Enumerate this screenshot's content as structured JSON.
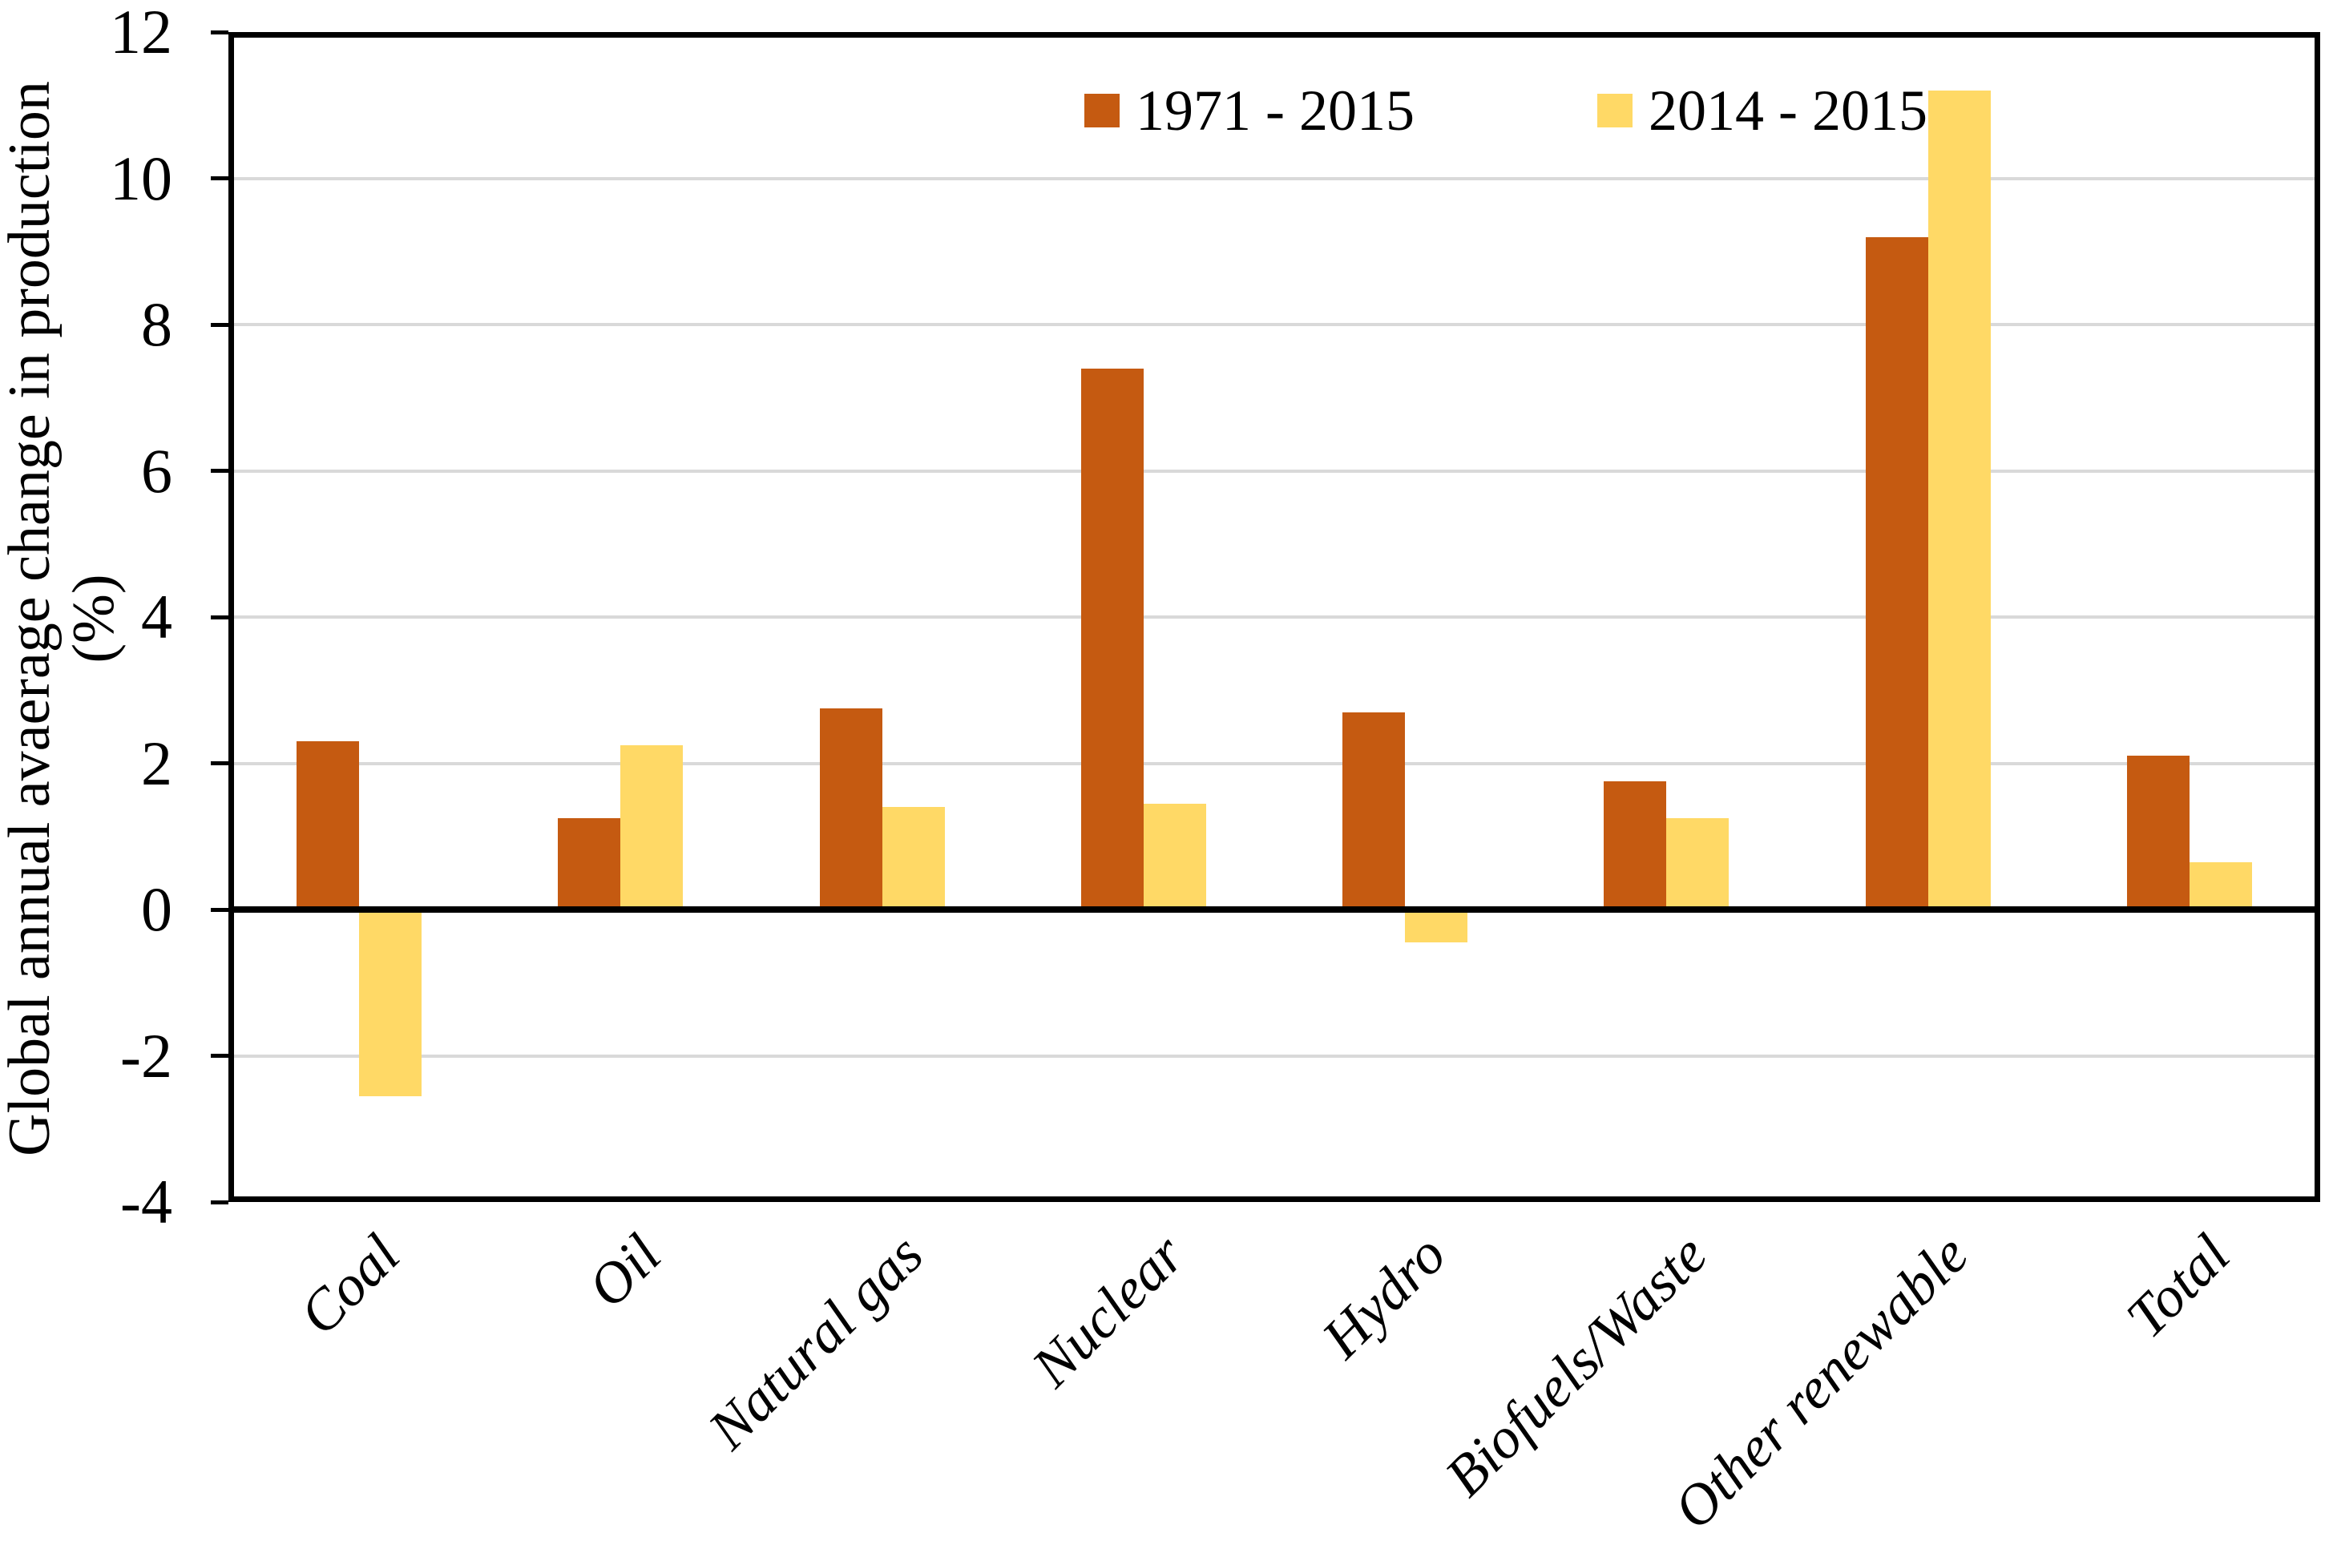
{
  "chart_data": {
    "type": "bar",
    "title": "",
    "categories": [
      "Coal",
      "Oil",
      "Natural gas",
      "Nuclear",
      "Hydro",
      "Biofuels/Waste",
      "Other renewable",
      "Total"
    ],
    "series": [
      {
        "name": "1971 - 2015",
        "color": "#C55A11",
        "values": [
          2.3,
          1.25,
          2.75,
          7.4,
          2.7,
          1.75,
          9.2,
          2.1
        ]
      },
      {
        "name": "2014 - 2015",
        "color": "#FFD966",
        "values": [
          -2.55,
          2.25,
          1.4,
          1.45,
          -0.45,
          1.25,
          11.2,
          0.65
        ]
      }
    ],
    "xlabel": "",
    "ylabel_line1": "Global annual avaerage change in production",
    "ylabel_line2": "(%)",
    "ylim": [
      -4,
      12
    ],
    "y_ticks": [
      12,
      10,
      8,
      6,
      4,
      2,
      0,
      -2,
      -4
    ],
    "grid": "horizontal-gridlines-on",
    "gridline_color": "#D9D9D9",
    "axis_color": "#000000",
    "zero_line": "thick-black",
    "legend_position": "top-inside",
    "bar_gap_in_pair": 0
  }
}
